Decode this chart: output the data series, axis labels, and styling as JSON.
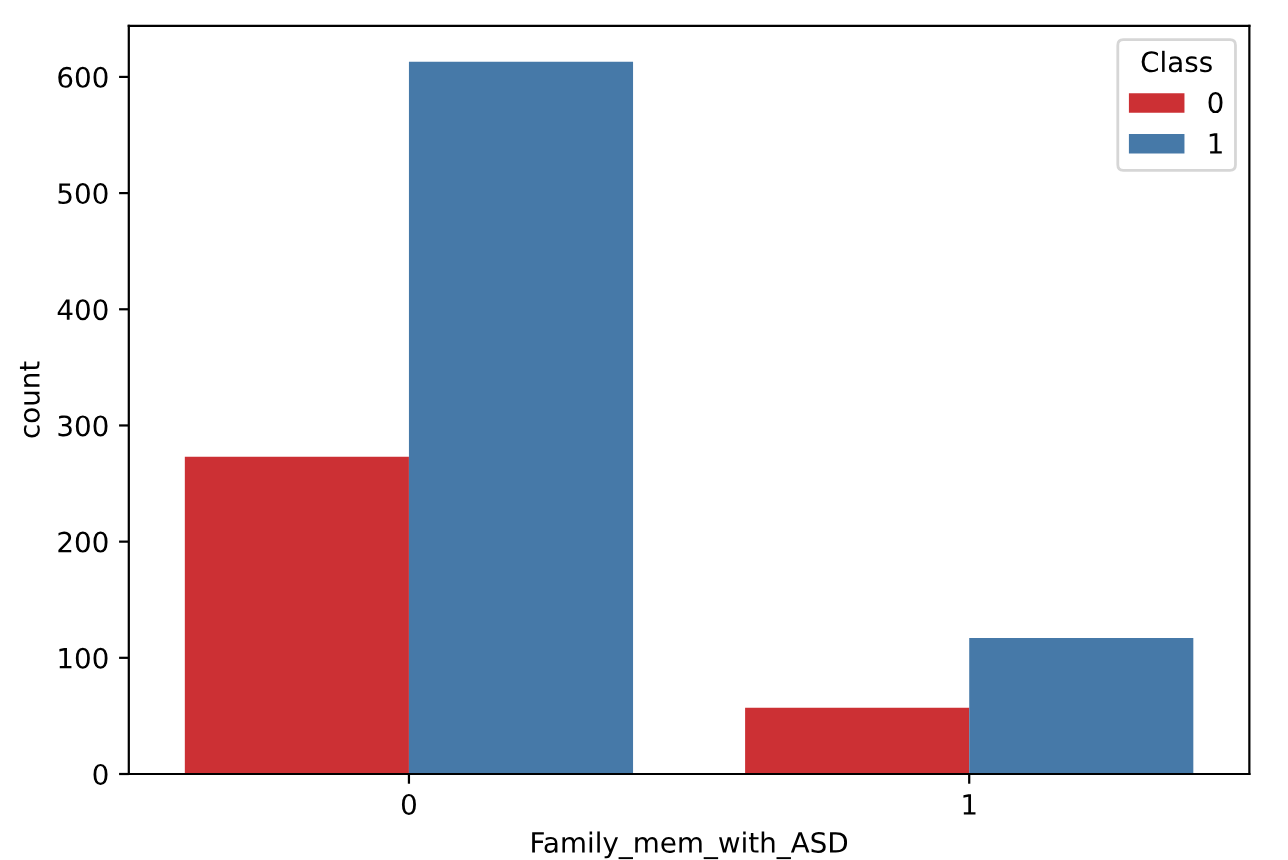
{
  "chart_data": {
    "type": "bar",
    "xlabel": "Family_mem_with_ASD",
    "ylabel": "count",
    "legend_title": "Class",
    "categories": [
      "0",
      "1"
    ],
    "series": [
      {
        "name": "0",
        "color": "#cc3034",
        "values": [
          273,
          57
        ]
      },
      {
        "name": "1",
        "color": "#4679a8",
        "values": [
          613,
          117
        ]
      }
    ],
    "ylim": [
      0,
      644
    ],
    "yticks": [
      0,
      100,
      200,
      300,
      400,
      500,
      600
    ],
    "grid": false,
    "legend": "top right"
  }
}
